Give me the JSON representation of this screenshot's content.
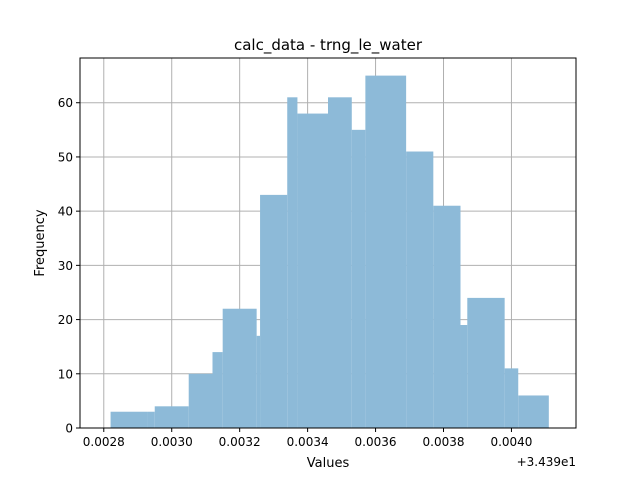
{
  "chart_data": {
    "type": "bar",
    "histogram": true,
    "title": "calc_data - trng_le_water",
    "xlabel": "Values",
    "ylabel": "Frequency",
    "x_offset_label": "+3.439e1",
    "bin_edges": [
      0.00282,
      0.00293,
      0.00295,
      0.00305,
      0.00312,
      0.00315,
      0.00325,
      0.00326,
      0.00334,
      0.00337,
      0.00346,
      0.00353,
      0.00357,
      0.00369,
      0.00377,
      0.00385,
      0.00387,
      0.00398,
      0.00402,
      0.00411
    ],
    "values": [
      3,
      3,
      4,
      10,
      14,
      22,
      17,
      43,
      61,
      58,
      61,
      55,
      65,
      51,
      41,
      19,
      24,
      11,
      6
    ],
    "xlim": [
      0.00273,
      0.00419
    ],
    "ylim": [
      0,
      68.25
    ],
    "xticks": [
      0.0028,
      0.003,
      0.0032,
      0.0034,
      0.0036,
      0.0038,
      0.004
    ],
    "xtick_labels": [
      "0.0028",
      "0.0030",
      "0.0032",
      "0.0034",
      "0.0036",
      "0.0038",
      "0.0040"
    ],
    "yticks": [
      0,
      10,
      20,
      30,
      40,
      50,
      60
    ],
    "ytick_labels": [
      "0",
      "10",
      "20",
      "30",
      "40",
      "50",
      "60"
    ],
    "grid": true,
    "bar_color": "#8dbad8",
    "grid_color": "#b0b0b0"
  }
}
